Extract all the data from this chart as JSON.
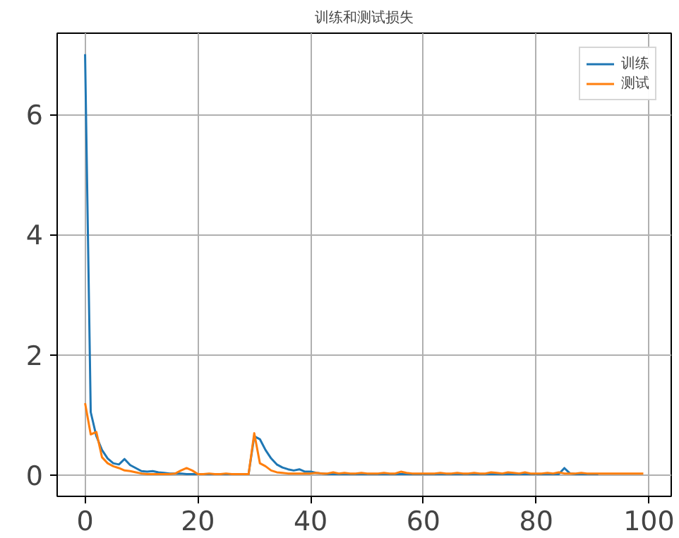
{
  "chart_data": {
    "type": "line",
    "title": "训练和测试损失",
    "x": [
      0,
      1,
      2,
      3,
      4,
      5,
      6,
      7,
      8,
      9,
      10,
      11,
      12,
      13,
      14,
      15,
      16,
      17,
      18,
      19,
      20,
      21,
      22,
      23,
      24,
      25,
      26,
      27,
      28,
      29,
      30,
      31,
      32,
      33,
      34,
      35,
      36,
      37,
      38,
      39,
      40,
      41,
      42,
      43,
      44,
      45,
      46,
      47,
      48,
      49,
      50,
      51,
      52,
      53,
      54,
      55,
      56,
      57,
      58,
      59,
      60,
      61,
      62,
      63,
      64,
      65,
      66,
      67,
      68,
      69,
      70,
      71,
      72,
      73,
      74,
      75,
      76,
      77,
      78,
      79,
      80,
      81,
      82,
      83,
      84,
      85,
      86,
      87,
      88,
      89,
      90,
      91,
      92,
      93,
      94,
      95,
      96,
      97,
      98,
      99
    ],
    "series": [
      {
        "name": "训练",
        "color": "#1f77b4",
        "values": [
          7.0,
          1.05,
          0.65,
          0.42,
          0.28,
          0.2,
          0.18,
          0.27,
          0.17,
          0.12,
          0.07,
          0.06,
          0.07,
          0.05,
          0.04,
          0.03,
          0.03,
          0.03,
          0.02,
          0.02,
          0.02,
          0.02,
          0.02,
          0.02,
          0.02,
          0.02,
          0.02,
          0.02,
          0.02,
          0.02,
          0.65,
          0.6,
          0.42,
          0.28,
          0.18,
          0.13,
          0.1,
          0.08,
          0.1,
          0.06,
          0.06,
          0.04,
          0.03,
          0.02,
          0.02,
          0.02,
          0.02,
          0.02,
          0.02,
          0.02,
          0.02,
          0.02,
          0.02,
          0.02,
          0.02,
          0.02,
          0.02,
          0.02,
          0.02,
          0.02,
          0.02,
          0.02,
          0.02,
          0.02,
          0.02,
          0.02,
          0.02,
          0.02,
          0.02,
          0.02,
          0.02,
          0.02,
          0.02,
          0.02,
          0.02,
          0.02,
          0.02,
          0.02,
          0.02,
          0.02,
          0.02,
          0.02,
          0.02,
          0.02,
          0.02,
          0.12,
          0.03,
          0.02,
          0.02,
          0.02,
          0.02,
          0.02,
          null,
          null,
          null,
          null,
          null,
          null,
          null,
          null
        ]
      },
      {
        "name": "测试",
        "color": "#ff7f0e",
        "values": [
          1.2,
          0.68,
          0.72,
          0.3,
          0.2,
          0.15,
          0.12,
          0.08,
          0.07,
          0.05,
          0.03,
          0.02,
          0.02,
          0.02,
          0.02,
          0.02,
          0.03,
          0.08,
          0.12,
          0.08,
          0.02,
          0.02,
          0.03,
          0.02,
          0.02,
          0.03,
          0.02,
          0.02,
          0.02,
          0.02,
          0.7,
          0.2,
          0.15,
          0.08,
          0.05,
          0.04,
          0.03,
          0.03,
          0.03,
          0.03,
          0.03,
          0.04,
          0.03,
          0.03,
          0.05,
          0.03,
          0.04,
          0.03,
          0.03,
          0.04,
          0.03,
          0.03,
          0.03,
          0.04,
          0.03,
          0.03,
          0.06,
          0.04,
          0.03,
          0.03,
          0.03,
          0.03,
          0.03,
          0.04,
          0.03,
          0.03,
          0.04,
          0.03,
          0.03,
          0.04,
          0.03,
          0.03,
          0.05,
          0.04,
          0.03,
          0.05,
          0.04,
          0.03,
          0.05,
          0.03,
          0.03,
          0.03,
          0.04,
          0.03,
          0.05,
          0.03,
          0.03,
          0.03,
          0.04,
          0.03,
          0.03,
          0.03,
          0.03,
          0.03,
          0.03,
          0.03,
          0.03,
          0.03,
          0.03,
          0.03
        ]
      }
    ],
    "xlim": [
      -4.95,
      103.95
    ],
    "ylim": [
      -0.35,
      7.35
    ],
    "xticks": [
      0,
      20,
      40,
      60,
      80,
      100
    ],
    "yticks": [
      0,
      2,
      4,
      6
    ],
    "grid": true,
    "legend": "top right",
    "marker": "none",
    "line_style": "solid"
  }
}
